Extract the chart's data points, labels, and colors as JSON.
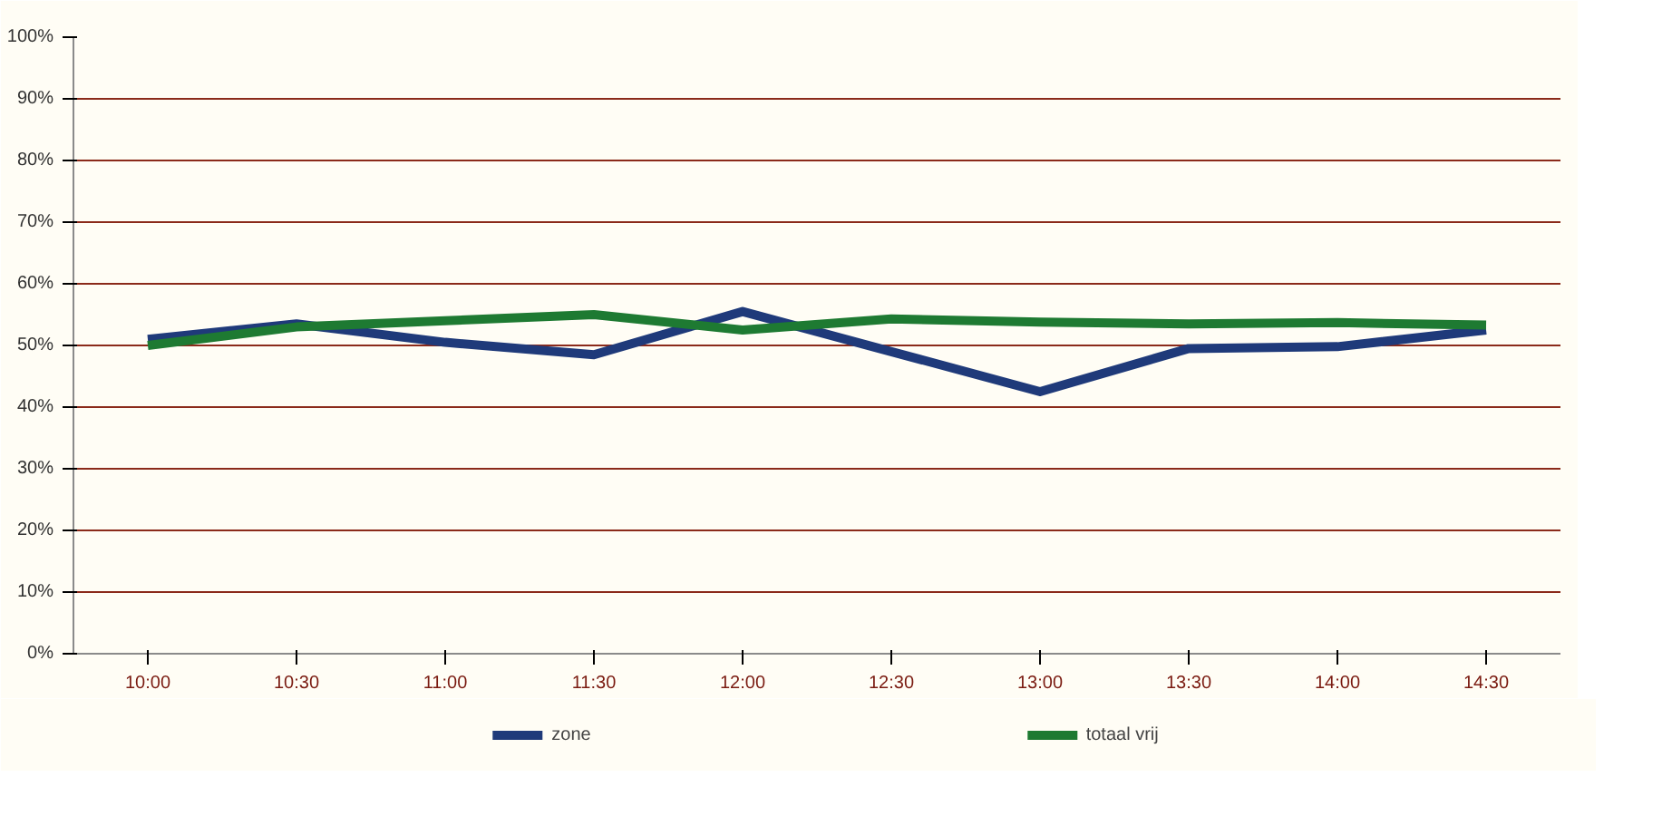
{
  "chart_data": {
    "type": "line",
    "categories": [
      "10:00",
      "10:30",
      "11:00",
      "11:30",
      "12:00",
      "12:30",
      "13:00",
      "13:30",
      "14:00",
      "14:30"
    ],
    "series": [
      {
        "name": "zone",
        "color": "#1f3a7a",
        "values": [
          51,
          53.5,
          50.5,
          48.5,
          55.5,
          49,
          42.5,
          49.5,
          49.8,
          52.5
        ]
      },
      {
        "name": "totaal vrij",
        "color": "#1e7a32",
        "values": [
          50,
          53,
          54,
          55,
          52.5,
          54.3,
          53.8,
          53.5,
          53.7,
          53.3
        ]
      }
    ],
    "ylim": [
      0,
      100
    ],
    "yticks": [
      {
        "value": 0,
        "label": "0%"
      },
      {
        "value": 10,
        "label": "10%"
      },
      {
        "value": 20,
        "label": "20%"
      },
      {
        "value": 30,
        "label": "30%"
      },
      {
        "value": 40,
        "label": "40%"
      },
      {
        "value": 50,
        "label": "50%"
      },
      {
        "value": 60,
        "label": "60%"
      },
      {
        "value": 70,
        "label": "70%"
      },
      {
        "value": 80,
        "label": "80%"
      },
      {
        "value": 90,
        "label": "90%"
      },
      {
        "value": 100,
        "label": "100%"
      }
    ],
    "grid": "y",
    "legend": "bottom",
    "marker": "none",
    "line_style": "solid"
  }
}
